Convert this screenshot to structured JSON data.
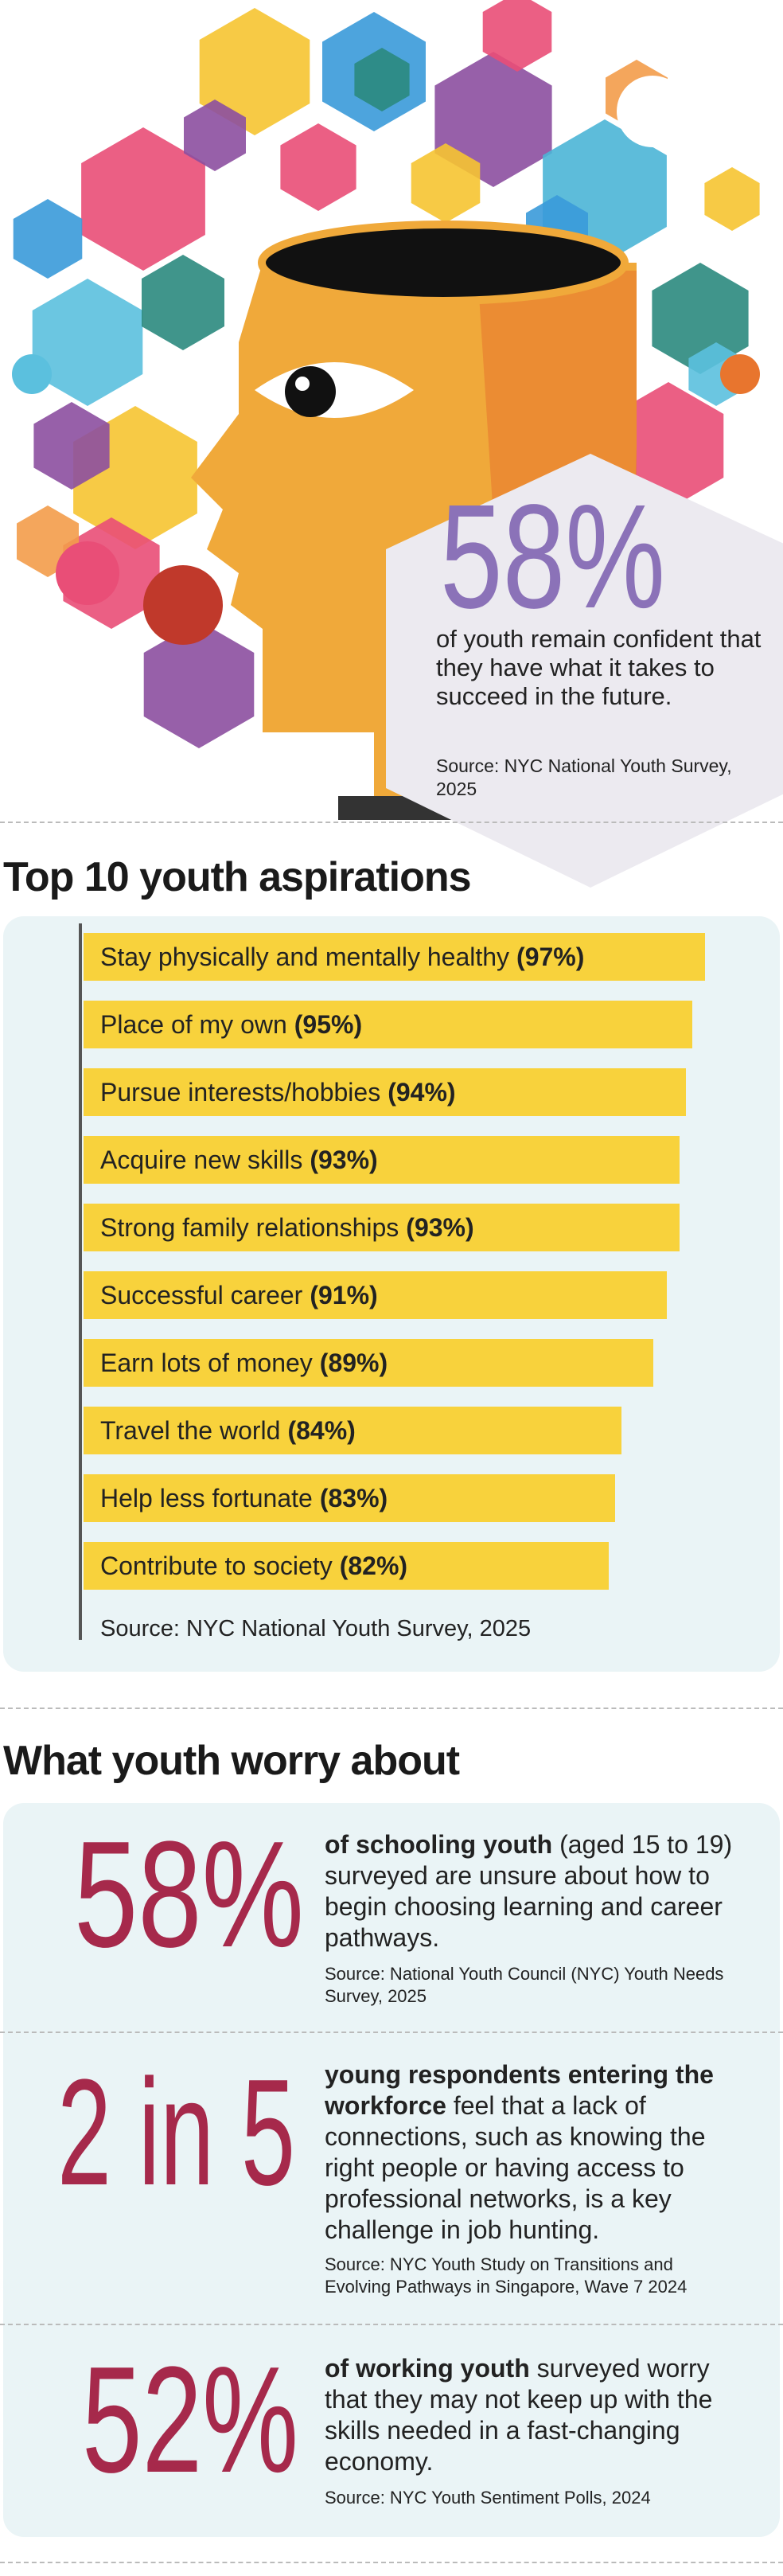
{
  "hero": {
    "stat": "58%",
    "text": "of youth remain confident that they have what it takes to succeed in the future.",
    "source": "Source: NYC National Youth Survey, 2025"
  },
  "chart_data": {
    "type": "bar",
    "title": "Top 10 youth aspirations",
    "categories": [
      "Stay physically and mentally healthy",
      "Place of my own",
      "Pursue interests/hobbies",
      "Acquire new skills",
      "Strong family relationships",
      "Successful career",
      "Earn lots of money",
      "Travel the world",
      "Help less fortunate",
      "Contribute to society"
    ],
    "values": [
      97,
      95,
      94,
      93,
      93,
      91,
      89,
      84,
      83,
      82
    ],
    "value_labels": [
      "(97%)",
      "(95%)",
      "(94%)",
      "(93%)",
      "(93%)",
      "(91%)",
      "(89%)",
      "(84%)",
      "(83%)",
      "(82%)"
    ],
    "color": "#f8d23c",
    "source": "Source: NYC National Youth Survey, 2025"
  },
  "worries": {
    "title": "What youth worry about",
    "items": [
      {
        "stat": "58%",
        "lead": "of schooling youth",
        "text": "(aged 15 to 19) surveyed are unsure about how to begin choosing learning and career pathways.",
        "source": "Source: National Youth Council (NYC) Youth Needs Survey, 2025"
      },
      {
        "stat": "2 in 5",
        "lead": "young respondents entering the workforce",
        "text": "feel that a lack of connections, such as knowing the right people or having access to professional networks, is a key challenge in job hunting.",
        "source": "Source: NYC Youth Study on Transitions and Evolving Pathways in Singapore, Wave 7 2024"
      },
      {
        "stat": "52%",
        "lead": "of working youth",
        "text": "surveyed worry that they may not keep up with the skills needed in a fast-changing economy.",
        "source": "Source: NYC Youth Sentiment Polls, 2024"
      }
    ]
  }
}
